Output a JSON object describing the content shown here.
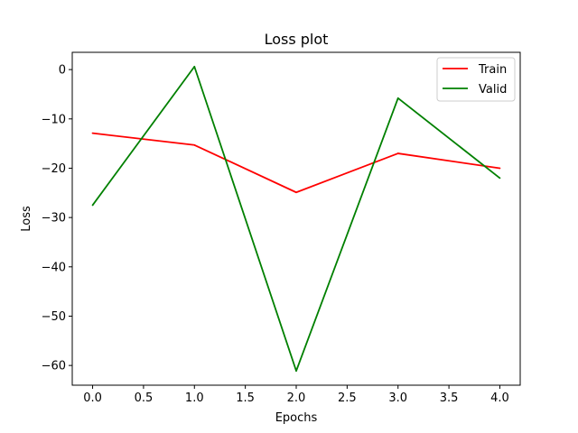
{
  "chart_data": {
    "type": "line",
    "title": "Loss plot",
    "xlabel": "Epochs",
    "ylabel": "Loss",
    "x": [
      0,
      1,
      2,
      3,
      4
    ],
    "xlim": [
      -0.2,
      4.2
    ],
    "ylim": [
      -64,
      3.5
    ],
    "xticks": [
      0,
      0.5,
      1,
      1.5,
      2,
      2.5,
      3,
      3.5,
      4
    ],
    "xtick_labels": [
      "0.0",
      "0.5",
      "1.0",
      "1.5",
      "2.0",
      "2.5",
      "3.0",
      "3.5",
      "4.0"
    ],
    "yticks": [
      0,
      -10,
      -20,
      -30,
      -40,
      -50,
      -60
    ],
    "ytick_labels": [
      "0",
      "−10",
      "−20",
      "−30",
      "−40",
      "−50",
      "−60"
    ],
    "grid": false,
    "legend_position": "top-right",
    "series": [
      {
        "name": "Train",
        "color": "#ff0000",
        "values": [
          -12.9,
          -15.3,
          -24.9,
          -17.0,
          -20.0
        ]
      },
      {
        "name": "Valid",
        "color": "#008000",
        "values": [
          -27.5,
          0.6,
          -61.1,
          -5.8,
          -22.0
        ]
      }
    ]
  }
}
